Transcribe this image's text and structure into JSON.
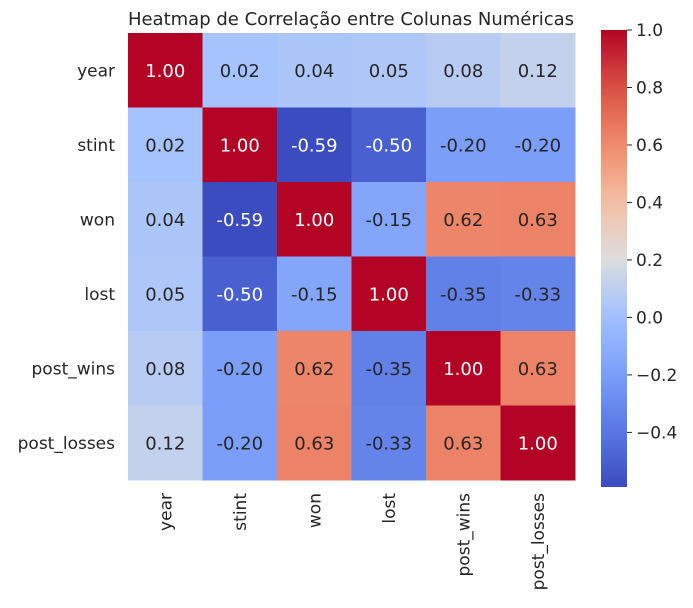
{
  "chart_data": {
    "type": "heatmap",
    "title": "Heatmap de Correlação entre Colunas Numéricas",
    "x_labels": [
      "year",
      "stint",
      "won",
      "lost",
      "post_wins",
      "post_losses"
    ],
    "y_labels": [
      "year",
      "stint",
      "won",
      "lost",
      "post_wins",
      "post_losses"
    ],
    "values": [
      [
        1.0,
        0.02,
        0.04,
        0.05,
        0.08,
        0.12
      ],
      [
        0.02,
        1.0,
        -0.59,
        -0.5,
        -0.2,
        -0.2
      ],
      [
        0.04,
        -0.59,
        1.0,
        -0.15,
        0.62,
        0.63
      ],
      [
        0.05,
        -0.5,
        -0.15,
        1.0,
        -0.35,
        -0.33
      ],
      [
        0.08,
        -0.2,
        0.62,
        -0.35,
        1.0,
        0.63
      ],
      [
        0.12,
        -0.2,
        0.63,
        -0.33,
        0.63,
        1.0
      ]
    ],
    "colormap": "coolwarm",
    "colorbar": {
      "range": [
        -0.59,
        1.0
      ],
      "ticks": [
        -0.4,
        -0.2,
        0.0,
        0.2,
        0.4,
        0.6,
        0.8,
        1.0
      ],
      "tick_labels": [
        "−0.4",
        "−0.2",
        "0.0",
        "0.2",
        "0.4",
        "0.6",
        "0.8",
        "1.0"
      ]
    },
    "annotation_format": "2 decimals"
  }
}
